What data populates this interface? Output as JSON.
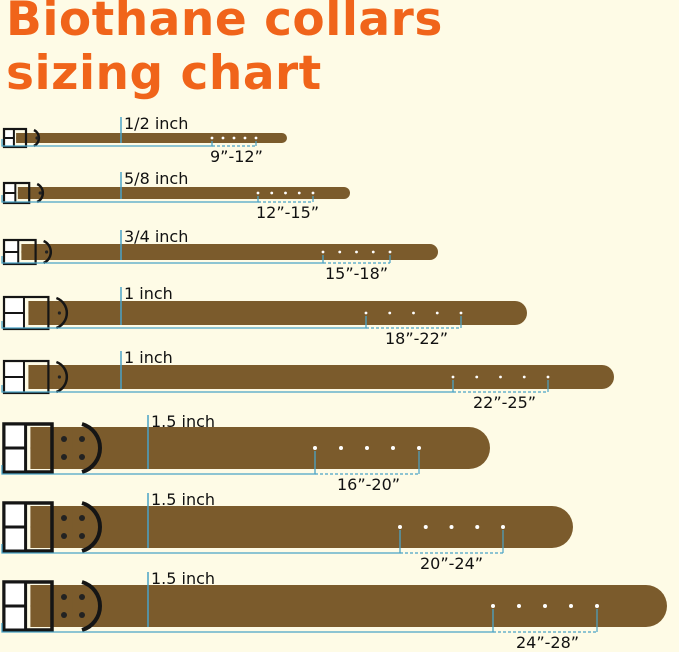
{
  "title": {
    "line1": "Biothane collars",
    "line2": "sizing chart"
  },
  "colors": {
    "title": "#f0641a",
    "strap": "#7b5b2c",
    "hardware": "#151515",
    "measure_line": "#4aa3c6",
    "background": "#fefbe6"
  },
  "collars": [
    {
      "width": "1/2 inch",
      "size": "9”-12”"
    },
    {
      "width": "5/8 inch",
      "size": "12”-15”"
    },
    {
      "width": "3/4 inch",
      "size": "15”-18”"
    },
    {
      "width": "1 inch",
      "size": "18”-22”"
    },
    {
      "width": "1 inch",
      "size": "22”-25”"
    },
    {
      "width": "1.5 inch",
      "size": "16”-20”"
    },
    {
      "width": "1.5 inch",
      "size": "20”-24”"
    },
    {
      "width": "1.5 inch",
      "size": "24”-28”"
    }
  ]
}
